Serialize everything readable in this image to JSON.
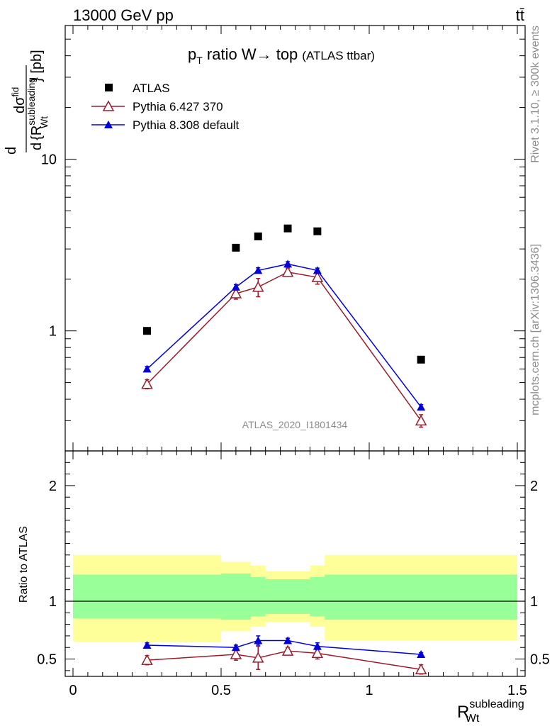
{
  "header": {
    "left": "13000 GeV pp",
    "right": "tt̄"
  },
  "side_text": {
    "rivet": "Rivet 3.1.10, ≥ 300k events",
    "mcplots": "mcplots.cern.ch [arXiv:1306.3436]"
  },
  "chart_data": {
    "type": "scatter",
    "title_main": "p",
    "title_sub": "T",
    "title_rest": " ratio W→ top",
    "title_small": "(ATLAS ttbar)",
    "watermark": "ATLAS_2020_I1801434",
    "ylabel": "dσ/d{R_Wt^subleading} [pb]",
    "ylabel_parts": {
      "d1": "d",
      "num": "dσ",
      "num_sup": "fid",
      "d2": "d",
      "brace_open": "{R",
      "sup": "subleading",
      "sub": "Wt",
      "brace_close": "} [pb]"
    },
    "xlabel_parts": {
      "main": "R",
      "sup": "subleading",
      "sub": "Wt"
    },
    "xlim": [
      0,
      1.5
    ],
    "ylim_log": [
      0.2,
      60
    ],
    "x_ticks": [
      "0",
      "0.5",
      "1",
      "1.5"
    ],
    "y_ticks": [
      "1",
      "10"
    ],
    "legend": [
      {
        "name": "ATLAS",
        "marker": "square",
        "color": "#000000"
      },
      {
        "name": "Pythia 6.427 370",
        "marker": "open-triangle",
        "color": "#9b1b2b"
      },
      {
        "name": "Pythia 8.308 default",
        "marker": "filled-triangle",
        "color": "#0000dd"
      }
    ],
    "bin_edges": [
      0,
      0.5,
      0.6,
      0.65,
      0.8,
      0.85,
      1.5
    ],
    "x": [
      0.25,
      0.55,
      0.625,
      0.725,
      0.825,
      1.175
    ],
    "series": [
      {
        "name": "ATLAS",
        "values": [
          1.0,
          3.05,
          3.55,
          3.95,
          3.8,
          0.68
        ]
      },
      {
        "name": "Pythia 6.427 370",
        "values": [
          0.49,
          1.65,
          1.8,
          2.2,
          2.05,
          0.3
        ],
        "err": [
          0.03,
          0.12,
          0.22,
          0.12,
          0.18,
          0.025
        ]
      },
      {
        "name": "Pythia 8.308 default",
        "values": [
          0.6,
          1.8,
          2.25,
          2.45,
          2.25,
          0.36
        ],
        "err": [
          0.02,
          0.06,
          0.08,
          0.08,
          0.07,
          0.012
        ]
      }
    ],
    "ratio": {
      "ylabel": "Ratio to ATLAS",
      "ylim": [
        0.35,
        2.3
      ],
      "y_ticks": [
        "0.5",
        "1",
        "2"
      ],
      "band_inner": [
        [
          0.85,
          1.23
        ],
        [
          0.84,
          1.24
        ],
        [
          0.87,
          1.21
        ],
        [
          0.89,
          1.19
        ],
        [
          0.87,
          1.21
        ],
        [
          0.84,
          1.23
        ]
      ],
      "band_outer": [
        [
          0.65,
          1.4
        ],
        [
          0.74,
          1.34
        ],
        [
          0.78,
          1.31
        ],
        [
          0.82,
          1.26
        ],
        [
          0.78,
          1.31
        ],
        [
          0.66,
          1.4
        ]
      ],
      "pythia6": [
        0.49,
        0.54,
        0.51,
        0.57,
        0.55,
        0.41
      ],
      "pythia6_err": [
        0.04,
        0.05,
        0.1,
        0.03,
        0.05,
        0.04
      ],
      "pythia8": [
        0.62,
        0.6,
        0.66,
        0.66,
        0.61,
        0.54
      ],
      "pythia8_err": [
        0.02,
        0.02,
        0.04,
        0.02,
        0.03,
        0.015
      ]
    }
  }
}
